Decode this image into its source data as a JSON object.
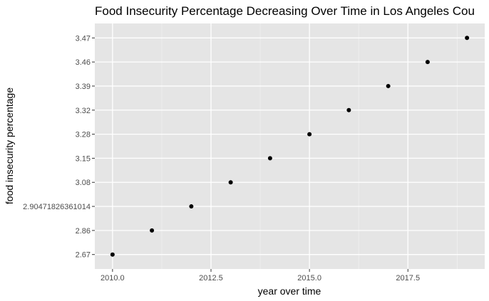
{
  "chart_data": {
    "type": "scatter",
    "title": "Food Insecurity Percentage Decreasing Over Time in Los Angeles Cou",
    "xlabel": "year over time",
    "ylabel": "food insecurity percentage",
    "x": [
      2010,
      2011,
      2012,
      2013,
      2014,
      2015,
      2016,
      2017,
      2018,
      2019
    ],
    "y_categories": [
      "2.67",
      "2.86",
      "2.90471826361014",
      "3.08",
      "3.15",
      "3.28",
      "3.32",
      "3.39",
      "3.46",
      "3.47"
    ],
    "y": [
      "2.67",
      "2.86",
      "2.90471826361014",
      "3.08",
      "3.15",
      "3.28",
      "3.32",
      "3.39",
      "3.46",
      "3.47"
    ],
    "x_ticks": [
      2010.0,
      2012.5,
      2015.0,
      2017.5
    ],
    "x_tick_labels": [
      "2010.0",
      "2012.5",
      "2015.0",
      "2017.5"
    ],
    "xlim": [
      2009.55,
      2019.45
    ],
    "grid": true,
    "panel_color": "#e5e5e5",
    "point_color": "#000000"
  }
}
